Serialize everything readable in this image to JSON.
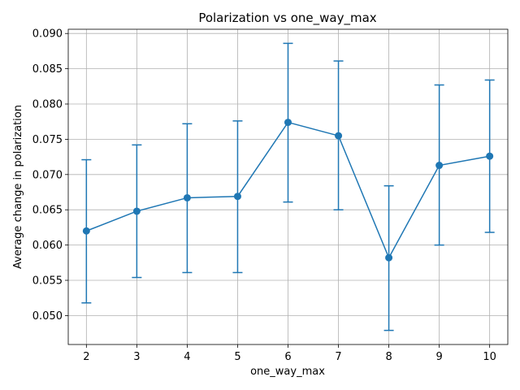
{
  "chart_data": {
    "type": "line",
    "title": "Polarization vs one_way_max",
    "xlabel": "one_way_max",
    "ylabel": "Average change in polarization",
    "x": [
      2,
      3,
      4,
      5,
      6,
      7,
      8,
      9,
      10
    ],
    "series": [
      {
        "values": [
          0.062,
          0.0648,
          0.0667,
          0.0669,
          0.0774,
          0.0755,
          0.0582,
          0.0713,
          0.0726
        ],
        "err_low": [
          0.0518,
          0.0554,
          0.0561,
          0.0561,
          0.0661,
          0.065,
          0.0479,
          0.06,
          0.0618
        ],
        "err_high": [
          0.0721,
          0.0742,
          0.0772,
          0.0776,
          0.0886,
          0.0861,
          0.0684,
          0.0827,
          0.0834
        ],
        "color": "#1f77b4",
        "marker": "circle"
      }
    ],
    "xlim": [
      1.64,
      10.36
    ],
    "ylim": [
      0.0459,
      0.0906
    ],
    "x_ticks": [
      2,
      3,
      4,
      5,
      6,
      7,
      8,
      9,
      10
    ],
    "y_ticks": [
      0.05,
      0.055,
      0.06,
      0.065,
      0.07,
      0.075,
      0.08,
      0.085,
      0.09
    ],
    "y_tick_labels": [
      "0.050",
      "0.055",
      "0.060",
      "0.065",
      "0.070",
      "0.075",
      "0.080",
      "0.085",
      "0.090"
    ],
    "grid": true
  }
}
